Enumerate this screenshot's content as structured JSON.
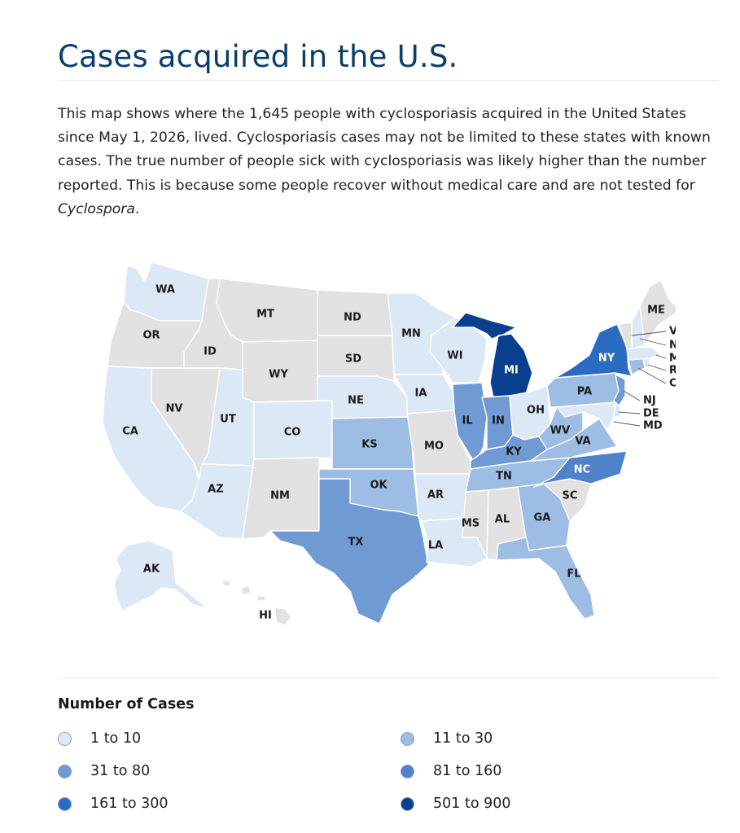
{
  "title": "Cases acquired in the U.S.",
  "intro": {
    "text_before": "This map shows where the 1,645 people with cyclosporiasis acquired in the United States since May 1, 2026, lived. Cyclosporiasis cases may not be limited to these states with known cases. The true number of people sick with cyclosporiasis was likely higher than the number reported. This is because some people recover without medical care and are not tested for ",
    "emphasis": "Cyclospora",
    "text_after": "."
  },
  "colors": {
    "no_cases": "#e2e2e2",
    "1_10": "#dde8f6",
    "11_30": "#9dbde4",
    "31_80": "#6f9ad4",
    "81_160": "#4f82c9",
    "161_300": "#2a6cc4",
    "501_900": "#0a3f8f"
  },
  "legend": {
    "title": "Number of Cases",
    "items": [
      {
        "label": "1 to 10",
        "key": "1_10"
      },
      {
        "label": "11 to 30",
        "key": "11_30"
      },
      {
        "label": "31 to 80",
        "key": "31_80"
      },
      {
        "label": "81 to 160",
        "key": "81_160"
      },
      {
        "label": "161 to 300",
        "key": "161_300"
      },
      {
        "label": "501 to 900",
        "key": "501_900"
      }
    ]
  },
  "states": {
    "WA": {
      "label": "WA",
      "range": "1_10"
    },
    "OR": {
      "label": "OR",
      "range": "no_cases"
    },
    "CA": {
      "label": "CA",
      "range": "1_10"
    },
    "NV": {
      "label": "NV",
      "range": "no_cases"
    },
    "ID": {
      "label": "ID",
      "range": "no_cases"
    },
    "MT": {
      "label": "MT",
      "range": "no_cases"
    },
    "WY": {
      "label": "WY",
      "range": "no_cases"
    },
    "UT": {
      "label": "UT",
      "range": "1_10"
    },
    "AZ": {
      "label": "AZ",
      "range": "1_10"
    },
    "CO": {
      "label": "CO",
      "range": "1_10"
    },
    "NM": {
      "label": "NM",
      "range": "no_cases"
    },
    "ND": {
      "label": "ND",
      "range": "no_cases"
    },
    "SD": {
      "label": "SD",
      "range": "no_cases"
    },
    "NE": {
      "label": "NE",
      "range": "1_10"
    },
    "KS": {
      "label": "KS",
      "range": "11_30"
    },
    "OK": {
      "label": "OK",
      "range": "11_30"
    },
    "TX": {
      "label": "TX",
      "range": "31_80"
    },
    "MN": {
      "label": "MN",
      "range": "1_10"
    },
    "IA": {
      "label": "IA",
      "range": "1_10"
    },
    "MO": {
      "label": "MO",
      "range": "no_cases"
    },
    "AR": {
      "label": "AR",
      "range": "1_10"
    },
    "LA": {
      "label": "LA",
      "range": "1_10"
    },
    "WI": {
      "label": "WI",
      "range": "1_10"
    },
    "IL": {
      "label": "IL",
      "range": "31_80"
    },
    "MI": {
      "label": "MI",
      "range": "501_900"
    },
    "IN": {
      "label": "IN",
      "range": "31_80"
    },
    "OH": {
      "label": "OH",
      "range": "1_10"
    },
    "KY": {
      "label": "KY",
      "range": "31_80"
    },
    "TN": {
      "label": "TN",
      "range": "11_30"
    },
    "MS": {
      "label": "MS",
      "range": "no_cases"
    },
    "AL": {
      "label": "AL",
      "range": "no_cases"
    },
    "GA": {
      "label": "GA",
      "range": "11_30"
    },
    "FL": {
      "label": "FL",
      "range": "11_30"
    },
    "SC": {
      "label": "SC",
      "range": "no_cases"
    },
    "NC": {
      "label": "NC",
      "range": "81_160"
    },
    "VA": {
      "label": "VA",
      "range": "11_30"
    },
    "WV": {
      "label": "WV",
      "range": "11_30"
    },
    "PA": {
      "label": "PA",
      "range": "11_30"
    },
    "NY": {
      "label": "NY",
      "range": "161_300"
    },
    "ME": {
      "label": "ME",
      "range": "no_cases"
    },
    "VT": {
      "label": "VT",
      "range": "no_cases"
    },
    "NH": {
      "label": "NH",
      "range": "1_10"
    },
    "MA": {
      "label": "MA",
      "range": "1_10"
    },
    "RI": {
      "label": "RI",
      "range": "1_10"
    },
    "CT": {
      "label": "CT",
      "range": "11_30"
    },
    "NJ": {
      "label": "NJ",
      "range": "31_80"
    },
    "DE": {
      "label": "DE",
      "range": "1_10"
    },
    "MD": {
      "label": "MD",
      "range": "1_10"
    },
    "AK": {
      "label": "AK",
      "range": "1_10"
    },
    "HI": {
      "label": "HI",
      "range": "no_cases"
    }
  }
}
